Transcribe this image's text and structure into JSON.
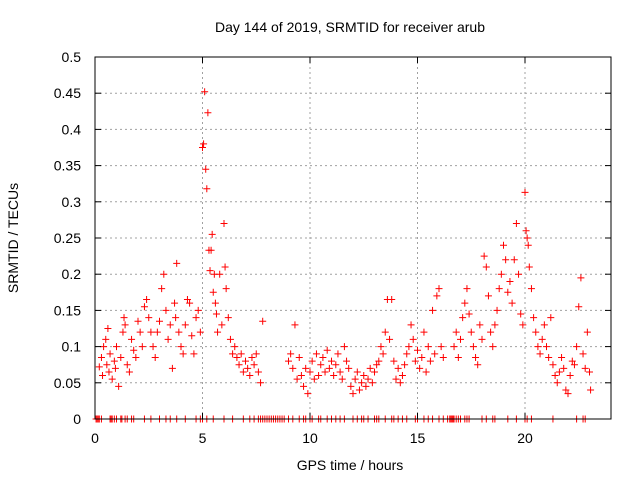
{
  "chart_data": {
    "type": "scatter",
    "title": "Day 144 of 2019, SRMTID for receiver arub",
    "xlabel": "GPS time / hours",
    "ylabel": "SRMTID / TECUs",
    "xlim": [
      0,
      24
    ],
    "ylim": [
      0,
      0.5
    ],
    "x_ticks": [
      0,
      5,
      10,
      15,
      20
    ],
    "x_tick_labels": [
      "0",
      "5",
      "10",
      "15",
      "20"
    ],
    "y_ticks": [
      0,
      0.05,
      0.1,
      0.15,
      0.2,
      0.25,
      0.3,
      0.35,
      0.4,
      0.45,
      0.5
    ],
    "y_tick_labels": [
      "0",
      "0.05",
      "0.1",
      "0.15",
      "0.2",
      "0.25",
      "0.3",
      "0.35",
      "0.4",
      "0.45",
      "0.5"
    ],
    "grid": true,
    "series": [
      {
        "name": "SRMTID",
        "color": "#ff0000",
        "marker": "plus",
        "points": [
          [
            0.2,
            0.072
          ],
          [
            0.3,
            0.085
          ],
          [
            0.35,
            0.06
          ],
          [
            0.4,
            0.1
          ],
          [
            0.5,
            0.11
          ],
          [
            0.55,
            0.075
          ],
          [
            0.6,
            0.125
          ],
          [
            0.65,
            0.065
          ],
          [
            0.7,
            0.09
          ],
          [
            0.8,
            0.055
          ],
          [
            0.9,
            0.08
          ],
          [
            0.95,
            0.07
          ],
          [
            1.0,
            0.1
          ],
          [
            1.1,
            0.045
          ],
          [
            1.2,
            0.085
          ],
          [
            1.3,
            0.12
          ],
          [
            1.35,
            0.14
          ],
          [
            1.4,
            0.13
          ],
          [
            1.5,
            0.075
          ],
          [
            1.6,
            0.065
          ],
          [
            1.7,
            0.11
          ],
          [
            1.8,
            0.095
          ],
          [
            1.9,
            0.085
          ],
          [
            2.0,
            0.135
          ],
          [
            2.1,
            0.12
          ],
          [
            2.2,
            0.1
          ],
          [
            2.3,
            0.155
          ],
          [
            2.4,
            0.165
          ],
          [
            2.5,
            0.14
          ],
          [
            2.6,
            0.12
          ],
          [
            2.7,
            0.1
          ],
          [
            2.8,
            0.085
          ],
          [
            2.9,
            0.12
          ],
          [
            3.0,
            0.135
          ],
          [
            3.1,
            0.18
          ],
          [
            3.2,
            0.2
          ],
          [
            3.3,
            0.15
          ],
          [
            3.4,
            0.11
          ],
          [
            3.5,
            0.13
          ],
          [
            3.6,
            0.07
          ],
          [
            3.7,
            0.16
          ],
          [
            3.75,
            0.14
          ],
          [
            3.8,
            0.215
          ],
          [
            3.9,
            0.12
          ],
          [
            4.0,
            0.1
          ],
          [
            4.1,
            0.09
          ],
          [
            4.2,
            0.13
          ],
          [
            4.3,
            0.165
          ],
          [
            4.4,
            0.16
          ],
          [
            4.5,
            0.115
          ],
          [
            4.6,
            0.09
          ],
          [
            4.7,
            0.14
          ],
          [
            4.8,
            0.15
          ],
          [
            4.9,
            0.12
          ],
          [
            5.0,
            0.375
          ],
          [
            5.05,
            0.38
          ],
          [
            5.1,
            0.452
          ],
          [
            5.15,
            0.345
          ],
          [
            5.2,
            0.318
          ],
          [
            5.25,
            0.423
          ],
          [
            5.3,
            0.233
          ],
          [
            5.35,
            0.205
          ],
          [
            5.4,
            0.233
          ],
          [
            5.45,
            0.255
          ],
          [
            5.5,
            0.175
          ],
          [
            5.55,
            0.2
          ],
          [
            5.6,
            0.16
          ],
          [
            5.65,
            0.145
          ],
          [
            5.7,
            0.12
          ],
          [
            5.8,
            0.2
          ],
          [
            5.9,
            0.13
          ],
          [
            6.0,
            0.27
          ],
          [
            6.05,
            0.21
          ],
          [
            6.1,
            0.18
          ],
          [
            6.2,
            0.14
          ],
          [
            6.3,
            0.11
          ],
          [
            6.4,
            0.09
          ],
          [
            6.5,
            0.1
          ],
          [
            6.6,
            0.085
          ],
          [
            6.7,
            0.075
          ],
          [
            6.8,
            0.09
          ],
          [
            6.9,
            0.065
          ],
          [
            7.0,
            0.08
          ],
          [
            7.1,
            0.07
          ],
          [
            7.2,
            0.06
          ],
          [
            7.3,
            0.085
          ],
          [
            7.4,
            0.075
          ],
          [
            7.5,
            0.09
          ],
          [
            7.6,
            0.065
          ],
          [
            7.7,
            0.05
          ],
          [
            7.8,
            0.135
          ],
          [
            9.0,
            0.08
          ],
          [
            9.1,
            0.09
          ],
          [
            9.2,
            0.07
          ],
          [
            9.3,
            0.13
          ],
          [
            9.4,
            0.055
          ],
          [
            9.5,
            0.085
          ],
          [
            9.6,
            0.06
          ],
          [
            9.7,
            0.045
          ],
          [
            9.8,
            0.07
          ],
          [
            9.9,
            0.035
          ],
          [
            10.0,
            0.065
          ],
          [
            10.1,
            0.08
          ],
          [
            10.2,
            0.055
          ],
          [
            10.3,
            0.09
          ],
          [
            10.4,
            0.06
          ],
          [
            10.5,
            0.075
          ],
          [
            10.6,
            0.085
          ],
          [
            10.7,
            0.065
          ],
          [
            10.8,
            0.095
          ],
          [
            10.9,
            0.07
          ],
          [
            11.0,
            0.08
          ],
          [
            11.1,
            0.06
          ],
          [
            11.2,
            0.075
          ],
          [
            11.3,
            0.09
          ],
          [
            11.4,
            0.065
          ],
          [
            11.5,
            0.055
          ],
          [
            11.6,
            0.1
          ],
          [
            11.7,
            0.08
          ],
          [
            11.8,
            0.07
          ],
          [
            11.9,
            0.045
          ],
          [
            12.0,
            0.035
          ],
          [
            12.1,
            0.055
          ],
          [
            12.2,
            0.065
          ],
          [
            12.3,
            0.04
          ],
          [
            12.4,
            0.05
          ],
          [
            12.5,
            0.06
          ],
          [
            12.6,
            0.045
          ],
          [
            12.7,
            0.055
          ],
          [
            12.8,
            0.07
          ],
          [
            12.9,
            0.05
          ],
          [
            13.0,
            0.065
          ],
          [
            13.1,
            0.075
          ],
          [
            13.2,
            0.08
          ],
          [
            13.3,
            0.1
          ],
          [
            13.4,
            0.09
          ],
          [
            13.5,
            0.12
          ],
          [
            13.6,
            0.165
          ],
          [
            13.7,
            0.11
          ],
          [
            13.8,
            0.165
          ],
          [
            13.9,
            0.08
          ],
          [
            14.0,
            0.055
          ],
          [
            14.1,
            0.07
          ],
          [
            14.2,
            0.05
          ],
          [
            14.3,
            0.06
          ],
          [
            14.4,
            0.075
          ],
          [
            14.5,
            0.09
          ],
          [
            14.6,
            0.1
          ],
          [
            14.7,
            0.13
          ],
          [
            14.8,
            0.11
          ],
          [
            14.9,
            0.08
          ],
          [
            15.0,
            0.095
          ],
          [
            15.1,
            0.07
          ],
          [
            15.2,
            0.085
          ],
          [
            15.3,
            0.12
          ],
          [
            15.4,
            0.065
          ],
          [
            15.5,
            0.1
          ],
          [
            15.6,
            0.08
          ],
          [
            15.7,
            0.15
          ],
          [
            15.8,
            0.09
          ],
          [
            15.9,
            0.17
          ],
          [
            16.0,
            0.18
          ],
          [
            16.1,
            0.1
          ],
          [
            16.2,
            0.085
          ],
          [
            16.7,
            0.1
          ],
          [
            16.8,
            0.12
          ],
          [
            16.9,
            0.085
          ],
          [
            17.0,
            0.11
          ],
          [
            17.1,
            0.14
          ],
          [
            17.2,
            0.16
          ],
          [
            17.3,
            0.18
          ],
          [
            17.4,
            0.145
          ],
          [
            17.5,
            0.12
          ],
          [
            17.6,
            0.1
          ],
          [
            17.7,
            0.085
          ],
          [
            17.8,
            0.075
          ],
          [
            17.9,
            0.13
          ],
          [
            18.0,
            0.11
          ],
          [
            18.1,
            0.225
          ],
          [
            18.2,
            0.21
          ],
          [
            18.3,
            0.17
          ],
          [
            18.4,
            0.12
          ],
          [
            18.5,
            0.1
          ],
          [
            18.6,
            0.13
          ],
          [
            18.7,
            0.15
          ],
          [
            18.8,
            0.18
          ],
          [
            18.9,
            0.2
          ],
          [
            19.0,
            0.24
          ],
          [
            19.1,
            0.22
          ],
          [
            19.2,
            0.175
          ],
          [
            19.3,
            0.19
          ],
          [
            19.4,
            0.16
          ],
          [
            19.5,
            0.22
          ],
          [
            19.6,
            0.27
          ],
          [
            19.7,
            0.2
          ],
          [
            19.8,
            0.145
          ],
          [
            19.9,
            0.13
          ],
          [
            20.0,
            0.313
          ],
          [
            20.05,
            0.26
          ],
          [
            20.1,
            0.25
          ],
          [
            20.15,
            0.24
          ],
          [
            20.2,
            0.21
          ],
          [
            20.3,
            0.18
          ],
          [
            20.4,
            0.14
          ],
          [
            20.5,
            0.12
          ],
          [
            20.6,
            0.1
          ],
          [
            20.7,
            0.09
          ],
          [
            20.8,
            0.11
          ],
          [
            20.9,
            0.13
          ],
          [
            21.0,
            0.1
          ],
          [
            21.1,
            0.085
          ],
          [
            21.2,
            0.14
          ],
          [
            21.3,
            0.075
          ],
          [
            21.4,
            0.06
          ],
          [
            21.5,
            0.05
          ],
          [
            21.6,
            0.065
          ],
          [
            21.7,
            0.085
          ],
          [
            21.8,
            0.07
          ],
          [
            21.9,
            0.04
          ],
          [
            22.0,
            0.035
          ],
          [
            22.1,
            0.06
          ],
          [
            22.2,
            0.08
          ],
          [
            22.3,
            0.075
          ],
          [
            22.4,
            0.1
          ],
          [
            22.5,
            0.155
          ],
          [
            22.6,
            0.195
          ],
          [
            22.7,
            0.09
          ],
          [
            22.8,
            0.07
          ],
          [
            22.9,
            0.12
          ],
          [
            23.0,
            0.065
          ],
          [
            23.05,
            0.04
          ]
        ]
      }
    ],
    "zero_points_x": [
      0.05,
      0.1,
      0.15,
      0.2,
      0.3,
      0.7,
      0.75,
      0.8,
      0.9,
      1.0,
      1.2,
      1.25,
      1.4,
      1.5,
      1.7,
      1.8,
      2.3,
      2.6,
      3.0,
      3.3,
      3.5,
      3.8,
      4.2,
      4.7,
      4.9,
      5.0,
      5.2,
      5.5,
      6.0,
      6.4,
      6.9,
      7.2,
      7.4,
      7.6,
      7.7,
      7.8,
      7.9,
      8.0,
      8.1,
      8.2,
      8.3,
      8.4,
      8.5,
      8.6,
      8.7,
      8.8,
      9.0,
      9.2,
      9.5,
      9.7,
      9.8,
      10.0,
      10.1,
      10.4,
      10.5,
      10.8,
      11.0,
      11.2,
      11.4,
      11.6,
      12.0,
      12.2,
      12.4,
      12.5,
      12.7,
      13.0,
      13.1,
      13.2,
      13.5,
      13.8,
      13.9,
      14.1,
      14.3,
      14.5,
      14.9,
      15.0,
      15.3,
      15.5,
      15.7,
      16.0,
      16.2,
      16.4,
      16.5,
      16.55,
      16.6,
      16.65,
      16.7,
      16.8,
      16.9,
      17.0,
      17.2,
      17.3,
      17.4,
      18.0,
      18.2,
      18.5,
      18.6,
      19.2,
      19.6,
      20.0,
      20.1,
      20.3,
      21.3,
      22.4,
      22.7,
      22.8
    ]
  }
}
